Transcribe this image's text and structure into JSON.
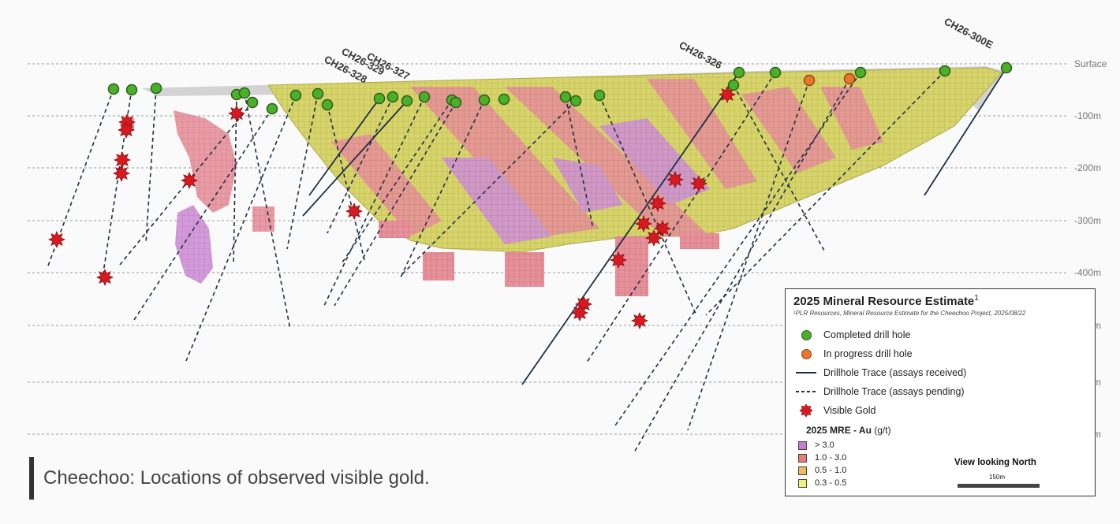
{
  "caption": "Cheechoo: Locations of observed visible gold.",
  "depth_labels": [
    "Surface",
    "-100m",
    "-200m",
    "-300m",
    "-400m",
    "-500m",
    "-600m",
    "-700m"
  ],
  "hole_labels": [
    "CH26-328",
    "CH26-329",
    "CH26-327",
    "CH26-326",
    "CH26-300E"
  ],
  "legend": {
    "title": "2025 Mineral Resource Estimate",
    "title_superscript": "1",
    "footnote": "¹PLR Resources, Mineral Resource Estimate for the Cheechoo Project, 2025/08/22",
    "items": [
      {
        "label": "Completed drill hole",
        "color": "#4caf2a"
      },
      {
        "label": "In progress drill hole",
        "color": "#e8762c"
      },
      {
        "label": "Drillhole Trace (assays received)"
      },
      {
        "label": "Drillhole Trace (assays pending)"
      },
      {
        "label": "Visible Gold",
        "color": "#d71920"
      }
    ],
    "mre_title": "2025 MRE - Au",
    "mre_unit": "(g/t)",
    "grades": [
      {
        "label": "> 3.0",
        "color": "#c77ad6"
      },
      {
        "label": "1.0 - 3.0",
        "color": "#ee7b78"
      },
      {
        "label": "0.5 - 1.0",
        "color": "#f5b95d"
      },
      {
        "label": "0.3 - 0.5",
        "color": "#f3ef7c"
      }
    ],
    "view_label": "View looking North",
    "scale_label": "150m"
  }
}
